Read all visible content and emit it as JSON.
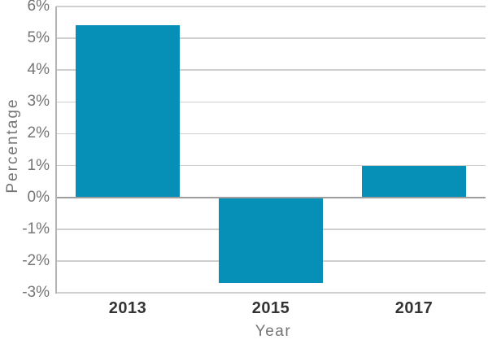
{
  "chart_data": {
    "type": "bar",
    "title": "",
    "xlabel": "Year",
    "ylabel": "Percentage",
    "categories": [
      "2013",
      "2015",
      "2017"
    ],
    "values": [
      5.4,
      -2.7,
      1
    ],
    "series": [
      {
        "name": "Percentage",
        "values": [
          5.4,
          -2.7,
          1
        ]
      }
    ],
    "ylim": [
      -3,
      6
    ],
    "y_ticks": [
      {
        "value": 6,
        "label": "6%"
      },
      {
        "value": 5,
        "label": "5%"
      },
      {
        "value": 4,
        "label": "4%"
      },
      {
        "value": 3,
        "label": "3%"
      },
      {
        "value": 2,
        "label": "2%"
      },
      {
        "value": 1,
        "label": "1%"
      },
      {
        "value": 0,
        "label": "0%"
      },
      {
        "value": -1,
        "label": "-1%"
      },
      {
        "value": -2,
        "label": "-2%"
      },
      {
        "value": -3,
        "label": "-3%"
      }
    ],
    "grid": true,
    "legend": false,
    "bar_color": "#0690b8"
  },
  "colors": {
    "bar": "#0690b8",
    "gridline": "#cfcfcf",
    "zero_line": "#9e9e9e",
    "axis_line": "#b3b3b3",
    "tick_label": "#757575",
    "category_label": "#333333",
    "background": "#ffffff"
  }
}
